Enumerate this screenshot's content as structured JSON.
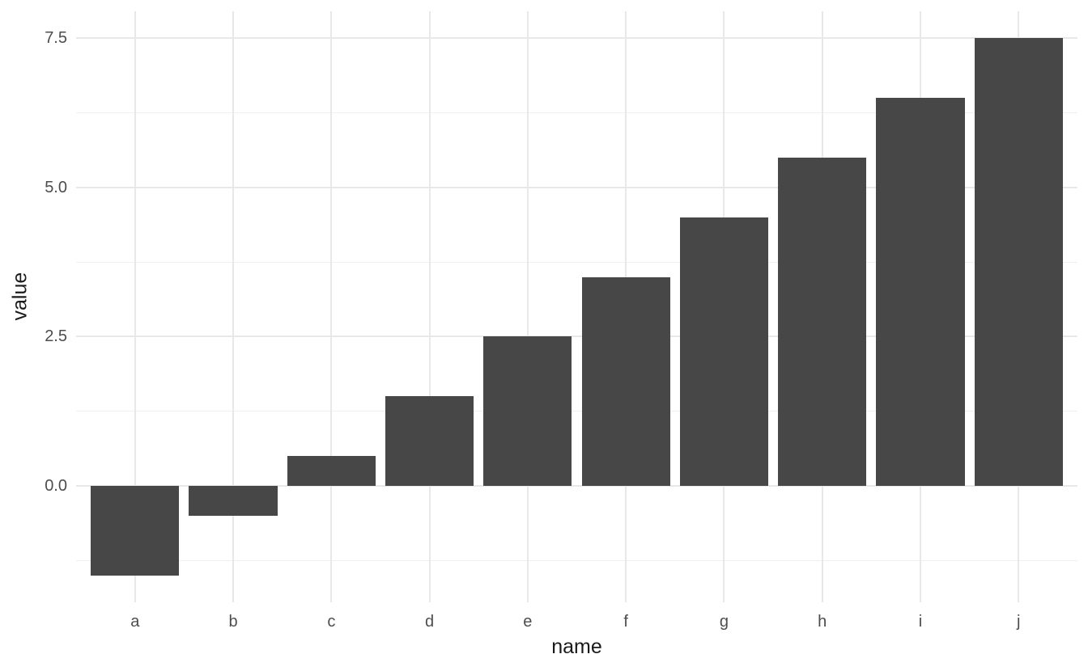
{
  "chart_data": {
    "type": "bar",
    "categories": [
      "a",
      "b",
      "c",
      "d",
      "e",
      "f",
      "g",
      "h",
      "i",
      "j"
    ],
    "values": [
      -1.5,
      -0.5,
      0.5,
      1.5,
      2.5,
      3.5,
      4.5,
      5.5,
      6.5,
      7.5
    ],
    "title": "",
    "xlabel": "name",
    "ylabel": "value",
    "ylim": [
      -1.95,
      7.95
    ],
    "y_major_ticks": [
      {
        "value": 0.0,
        "label": "0.0"
      },
      {
        "value": 2.5,
        "label": "2.5"
      },
      {
        "value": 5.0,
        "label": "5.0"
      },
      {
        "value": 7.5,
        "label": "7.5"
      }
    ],
    "y_minor_ticks": [
      -1.25,
      1.25,
      3.75,
      6.25
    ],
    "grid": true,
    "legend_position": "none",
    "bar_fill_color": "#474747",
    "grid_major_color": "#E8E8E8",
    "grid_minor_color": "#F0F0F0",
    "tick_label_color": "#4D4D4D",
    "axis_title_color": "#1A1A1A",
    "background_color": "#FFFFFF",
    "bar_width_fraction": 0.9
  }
}
